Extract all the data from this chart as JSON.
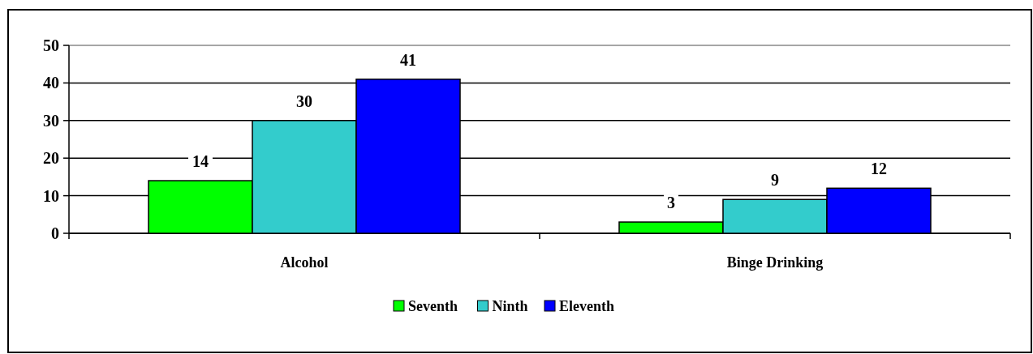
{
  "chart_data": {
    "type": "bar",
    "categories": [
      "Alcohol",
      "Binge Drinking"
    ],
    "series": [
      {
        "name": "Seventh",
        "color": "#00ff00",
        "values": [
          14,
          3
        ]
      },
      {
        "name": "Ninth",
        "color": "#33cccc",
        "values": [
          30,
          9
        ]
      },
      {
        "name": "Eleventh",
        "color": "#0000ff",
        "values": [
          41,
          12
        ]
      }
    ],
    "ylim": [
      0,
      50
    ],
    "yticks": [
      0,
      10,
      20,
      30,
      40,
      50
    ],
    "grid": "y",
    "legend": "bottom",
    "data_labels": true
  }
}
